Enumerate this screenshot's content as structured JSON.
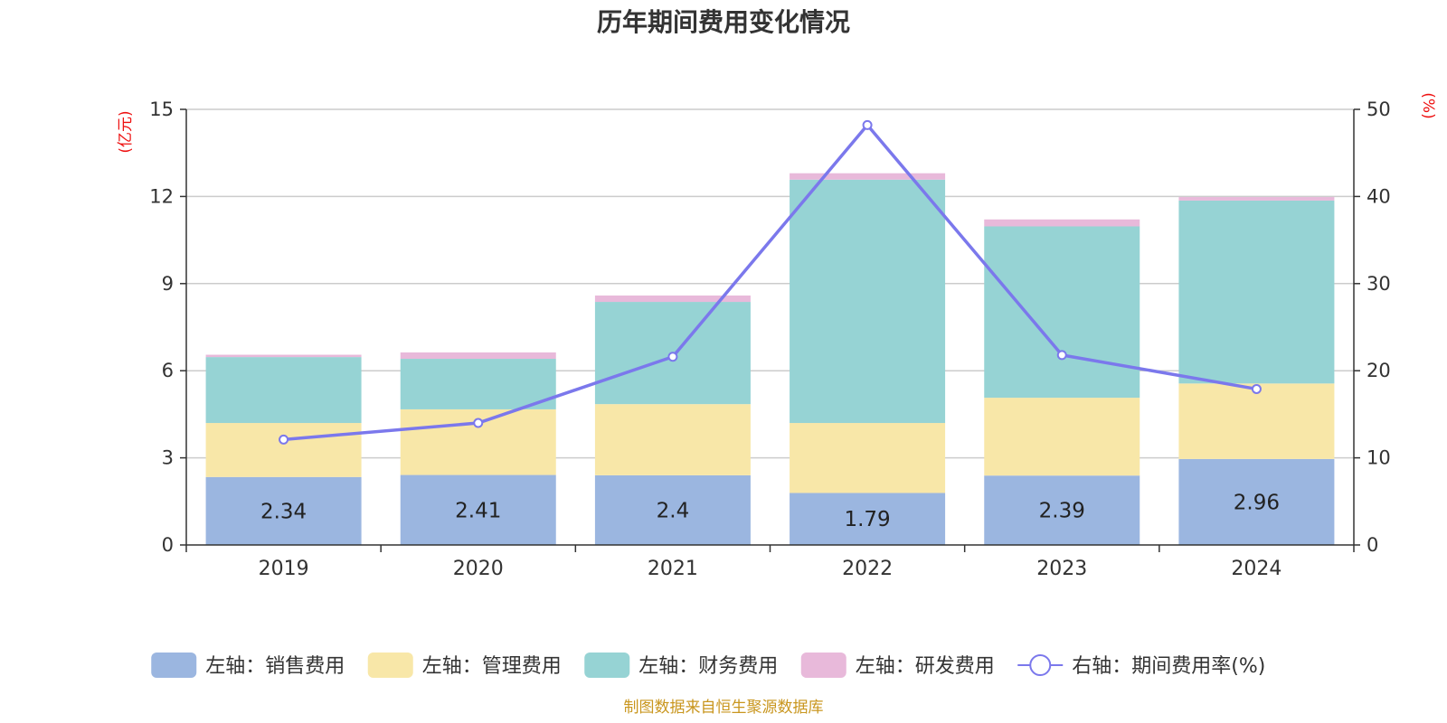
{
  "chart_data": {
    "type": "bar",
    "stacked": true,
    "title": "历年期间费用变化情况",
    "categories": [
      "2019",
      "2020",
      "2021",
      "2022",
      "2023",
      "2024"
    ],
    "y_left": {
      "unit_label": "(亿元)",
      "ylim": [
        0,
        15
      ],
      "ticks": [
        0,
        3,
        6,
        9,
        12,
        15
      ]
    },
    "y_right": {
      "unit_label": "(%)",
      "ylim": [
        0,
        50
      ],
      "ticks": [
        0,
        10,
        20,
        30,
        40,
        50
      ]
    },
    "series": [
      {
        "name": "左轴：销售费用",
        "axis": "left",
        "color": "#9bb6e0",
        "values": [
          2.34,
          2.41,
          2.4,
          1.79,
          2.39,
          2.96
        ],
        "show_labels": true
      },
      {
        "name": "左轴：管理费用",
        "axis": "left",
        "color": "#f8e7a8",
        "values": [
          1.86,
          2.26,
          2.45,
          2.41,
          2.68,
          2.6
        ]
      },
      {
        "name": "左轴：财务费用",
        "axis": "left",
        "color": "#96d3d4",
        "values": [
          2.27,
          1.74,
          3.52,
          8.38,
          5.9,
          6.3
        ]
      },
      {
        "name": "左轴：研发费用",
        "axis": "left",
        "color": "#e8b9da",
        "values": [
          0.08,
          0.22,
          0.22,
          0.22,
          0.24,
          0.12
        ]
      }
    ],
    "line": {
      "name": "右轴：期间费用率(%)",
      "axis": "right",
      "color": "#7b78ec",
      "values": [
        12.1,
        14.0,
        21.6,
        48.2,
        21.8,
        17.9
      ]
    },
    "grid": true,
    "legend_position": "bottom",
    "source": "制图数据来自恒生聚源数据库"
  }
}
